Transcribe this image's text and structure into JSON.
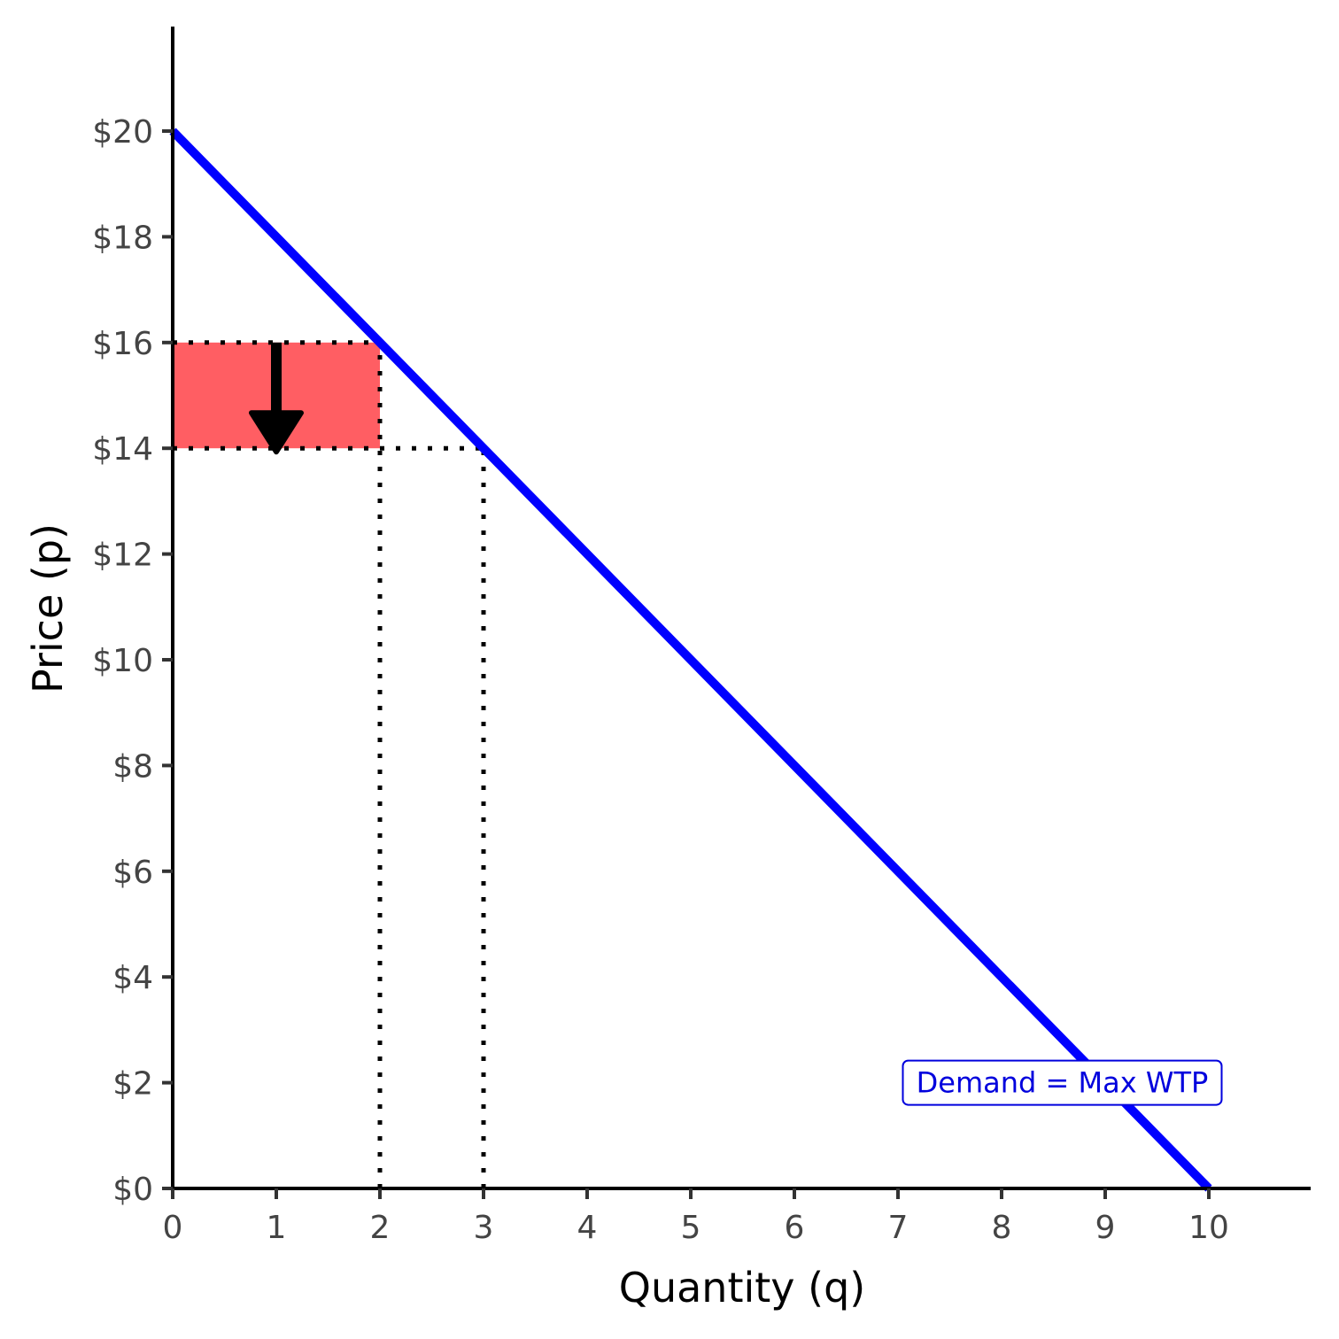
{
  "chart_data": {
    "type": "line",
    "title": "",
    "xlabel": "Quantity (q)",
    "ylabel": "Price (p)",
    "xlim": [
      0,
      11
    ],
    "ylim": [
      0,
      22
    ],
    "x_ticks": [
      0,
      1,
      2,
      3,
      4,
      5,
      6,
      7,
      8,
      9,
      10
    ],
    "x_tick_labels": [
      "0",
      "1",
      "2",
      "3",
      "4",
      "5",
      "6",
      "7",
      "8",
      "9",
      "10"
    ],
    "y_ticks": [
      0,
      2,
      4,
      6,
      8,
      10,
      12,
      14,
      16,
      18,
      20
    ],
    "y_tick_labels": [
      "$0",
      "$2",
      "$4",
      "$6",
      "$8",
      "$10",
      "$12",
      "$14",
      "$16",
      "$18",
      "$20"
    ],
    "grid": false,
    "series": [
      {
        "name": "Demand = Max WTP",
        "points": [
          [
            0,
            20
          ],
          [
            10,
            0
          ]
        ],
        "color": "#0000ff"
      }
    ],
    "annotations": {
      "shaded_rect": {
        "x0": 0,
        "x1": 2,
        "y0": 14,
        "y1": 16,
        "color": "#ff5e63"
      },
      "dotted_horizontal": [
        {
          "y": 16,
          "x0": 0,
          "x1": 2
        },
        {
          "y": 14,
          "x0": 0,
          "x1": 3
        }
      ],
      "dotted_vertical": [
        {
          "x": 2,
          "y0": 0,
          "y1": 16
        },
        {
          "x": 3,
          "y0": 0,
          "y1": 14
        }
      ],
      "arrow": {
        "x": 1,
        "y_from": 16,
        "y_to": 14,
        "color": "#000000"
      },
      "label": {
        "text": "Demand = Max WTP",
        "x": 8.5,
        "y": 2,
        "color": "#0000dd"
      }
    }
  }
}
